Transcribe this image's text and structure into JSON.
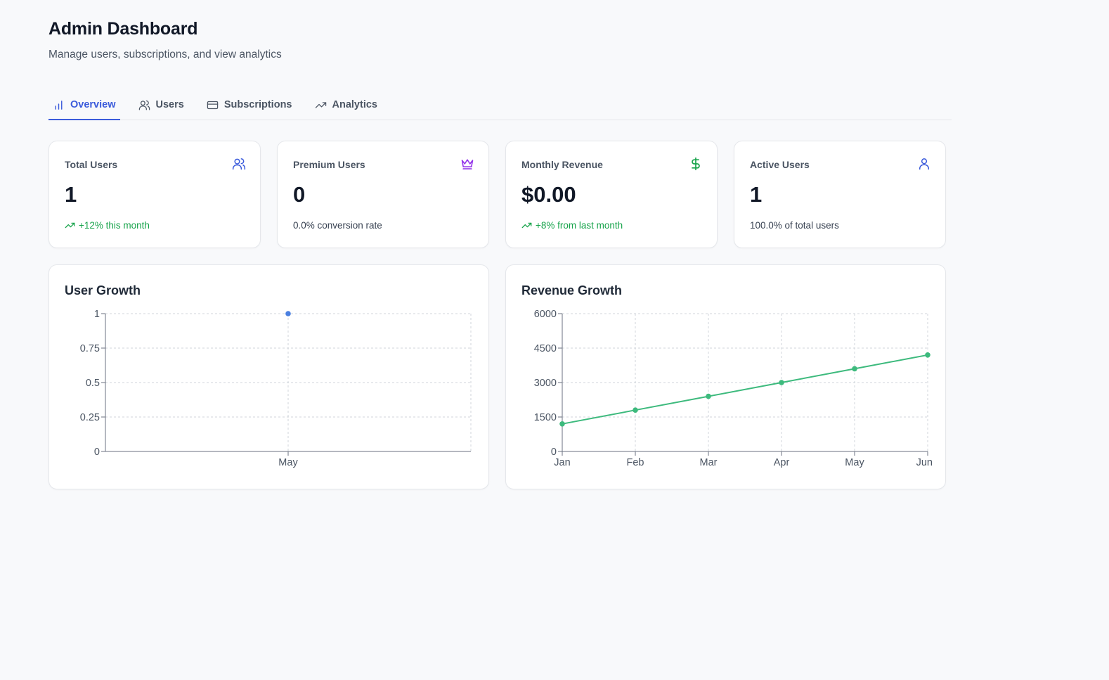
{
  "header": {
    "title": "Admin Dashboard",
    "subtitle": "Manage users, subscriptions, and view analytics"
  },
  "tabs": [
    {
      "label": "Overview",
      "icon": "bar-chart-icon",
      "active": true
    },
    {
      "label": "Users",
      "icon": "users-icon",
      "active": false
    },
    {
      "label": "Subscriptions",
      "icon": "credit-card-icon",
      "active": false
    },
    {
      "label": "Analytics",
      "icon": "trending-up-icon",
      "active": false
    }
  ],
  "stats": [
    {
      "label": "Total Users",
      "value": "1",
      "sub": "+12% this month",
      "icon": "users-icon",
      "icon_color": "#3b5bdb",
      "trend": true
    },
    {
      "label": "Premium Users",
      "value": "0",
      "sub": "0.0% conversion rate",
      "icon": "crown-icon",
      "icon_color": "#9333ea",
      "trend": false
    },
    {
      "label": "Monthly Revenue",
      "value": "$0.00",
      "sub": "+8% from last month",
      "icon": "dollar-icon",
      "icon_color": "#16a34a",
      "trend": true
    },
    {
      "label": "Active Users",
      "value": "1",
      "sub": "100.0% of total users",
      "icon": "user-icon",
      "icon_color": "#3b5bdb",
      "trend": false
    }
  ],
  "colors": {
    "accent": "#3b5bdb",
    "positive": "#16a34a",
    "user_series": "#4a7fe0",
    "revenue_series": "#3dba7d"
  },
  "chart_data": [
    {
      "type": "line",
      "title": "User Growth",
      "categories": [
        "May"
      ],
      "series": [
        {
          "name": "users",
          "values": [
            1
          ]
        }
      ],
      "ylim": [
        0,
        1
      ],
      "yticks": [
        "0",
        "0.25",
        "0.5",
        "0.75",
        "1"
      ],
      "ytick_values": [
        0,
        0.25,
        0.5,
        0.75,
        1
      ],
      "grid": true,
      "xlabel": "",
      "ylabel": ""
    },
    {
      "type": "line",
      "title": "Revenue Growth",
      "categories": [
        "Jan",
        "Feb",
        "Mar",
        "Apr",
        "May",
        "Jun"
      ],
      "series": [
        {
          "name": "revenue",
          "values": [
            1200,
            1800,
            2400,
            3000,
            3600,
            4200
          ]
        }
      ],
      "ylim": [
        0,
        6000
      ],
      "yticks": [
        "0",
        "1500",
        "3000",
        "4500",
        "6000"
      ],
      "ytick_values": [
        0,
        1500,
        3000,
        4500,
        6000
      ],
      "grid": true,
      "xlabel": "",
      "ylabel": ""
    }
  ]
}
